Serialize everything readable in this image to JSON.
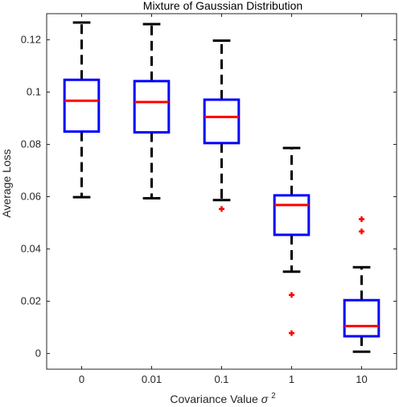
{
  "chart_data": {
    "type": "boxplot",
    "title": "Mixture of Gaussian Distribution",
    "xlabel": "Covariance Value",
    "xlabel_symbol": "σ",
    "xlabel_superscript": "2",
    "ylabel": "Average Loss",
    "ylim": [
      -0.006,
      0.13
    ],
    "yticks": [
      0,
      0.02,
      0.04,
      0.06,
      0.08,
      0.1,
      0.12
    ],
    "ytick_labels": [
      "0",
      "0.02",
      "0.04",
      "0.06",
      "0.08",
      "0.1",
      "0.12"
    ],
    "categories": [
      "0",
      "0.01",
      "0.1",
      "1",
      "10"
    ],
    "boxes": [
      {
        "category": "0",
        "whisker_low": 0.0598,
        "q1": 0.0849,
        "median": 0.0967,
        "q3": 0.1047,
        "whisker_high": 0.1266,
        "outliers": []
      },
      {
        "category": "0.01",
        "whisker_low": 0.0594,
        "q1": 0.0846,
        "median": 0.0962,
        "q3": 0.1042,
        "whisker_high": 0.126,
        "outliers": []
      },
      {
        "category": "0.1",
        "whisker_low": 0.0587,
        "q1": 0.0805,
        "median": 0.0905,
        "q3": 0.0971,
        "whisker_high": 0.1197,
        "outliers": [
          0.0553
        ]
      },
      {
        "category": "1",
        "whisker_low": 0.0313,
        "q1": 0.0454,
        "median": 0.0568,
        "q3": 0.0605,
        "whisker_high": 0.0786,
        "outliers": [
          0.0224,
          0.0078
        ]
      },
      {
        "category": "10",
        "whisker_low": 0.0007,
        "q1": 0.0066,
        "median": 0.0105,
        "q3": 0.0204,
        "whisker_high": 0.033,
        "outliers": [
          0.0514,
          0.0467
        ]
      }
    ],
    "grid": false,
    "colors": {
      "box": "#0000ff",
      "median": "#ff0000",
      "whisker": "#000000",
      "outlier": "#ff0000",
      "axis": "#262626"
    }
  }
}
